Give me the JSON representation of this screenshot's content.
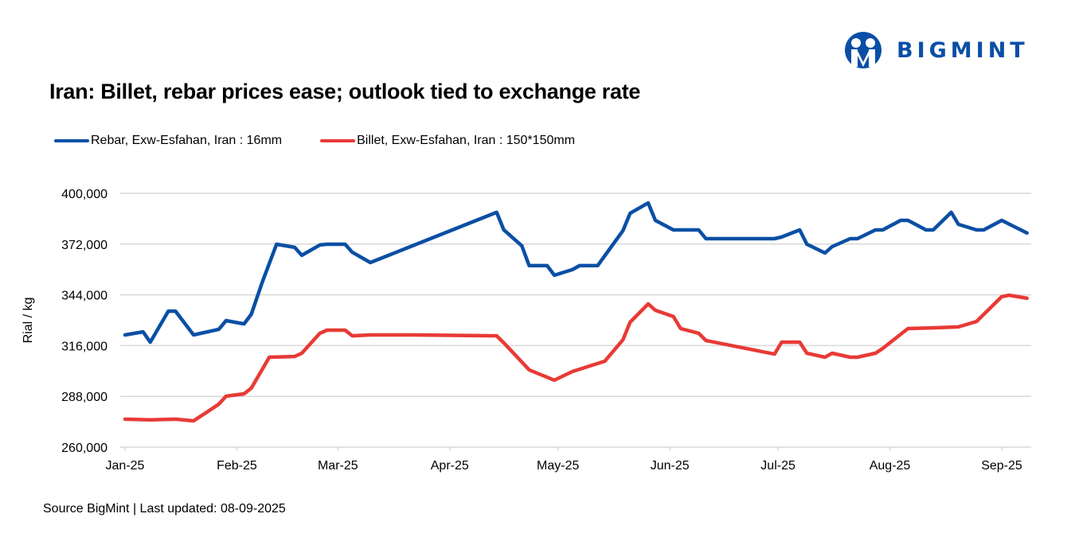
{
  "brand": {
    "name": "BIGMINT",
    "color": "#0a4fa5"
  },
  "title": "Iran: Billet, rebar prices ease; outlook tied to exchange rate",
  "source": "Source BigMint | Last updated: 08-09-2025",
  "chart_data": {
    "type": "line",
    "title": "Iran: Billet, rebar prices ease; outlook tied to exchange rate",
    "xlabel": "",
    "ylabel": "Rial / kg",
    "ylim": [
      260000,
      400000
    ],
    "yticks": [
      260000,
      288000,
      316000,
      344000,
      372000,
      400000
    ],
    "ytick_labels": [
      "260,000",
      "288,000",
      "316,000",
      "344,000",
      "372,000",
      "400,000"
    ],
    "x_unit": "days since 2025-01-01",
    "xlim": [
      0,
      250
    ],
    "xticks": [
      0,
      31,
      59,
      90,
      120,
      151,
      181,
      212,
      243
    ],
    "xtick_labels": [
      "Jan-25",
      "Feb-25",
      "Mar-25",
      "Apr-25",
      "May-25",
      "Jun-25",
      "Jul-25",
      "Aug-25",
      "Sep-25"
    ],
    "grid": true,
    "legend_position": "top-left",
    "series": [
      {
        "name": "Rebar, Exw-Esfahan, Iran : 16mm",
        "color": "#0a4fa5",
        "points": [
          [
            0,
            321900
          ],
          [
            5,
            323600
          ],
          [
            7,
            317900
          ],
          [
            12,
            335000
          ],
          [
            14,
            335000
          ],
          [
            19,
            321900
          ],
          [
            26,
            325000
          ],
          [
            28,
            329800
          ],
          [
            33,
            328000
          ],
          [
            35,
            333300
          ],
          [
            38,
            350800
          ],
          [
            42,
            371900
          ],
          [
            47,
            370200
          ],
          [
            49,
            365800
          ],
          [
            54,
            371500
          ],
          [
            56,
            371900
          ],
          [
            61,
            371900
          ],
          [
            63,
            367500
          ],
          [
            68,
            361800
          ],
          [
            103,
            389500
          ],
          [
            105,
            379800
          ],
          [
            110,
            371000
          ],
          [
            112,
            360100
          ],
          [
            117,
            360100
          ],
          [
            119,
            354800
          ],
          [
            124,
            357900
          ],
          [
            126,
            360100
          ],
          [
            131,
            360100
          ],
          [
            138,
            379400
          ],
          [
            140,
            389000
          ],
          [
            145,
            394700
          ],
          [
            147,
            385100
          ],
          [
            152,
            379800
          ],
          [
            159,
            379800
          ],
          [
            161,
            375000
          ],
          [
            180,
            375000
          ],
          [
            182,
            375900
          ],
          [
            187,
            379800
          ],
          [
            189,
            371900
          ],
          [
            194,
            367100
          ],
          [
            196,
            370600
          ],
          [
            201,
            375000
          ],
          [
            203,
            375000
          ],
          [
            208,
            379800
          ],
          [
            210,
            379800
          ],
          [
            215,
            385100
          ],
          [
            217,
            385100
          ],
          [
            222,
            379800
          ],
          [
            224,
            379800
          ],
          [
            229,
            389500
          ],
          [
            231,
            382900
          ],
          [
            236,
            379800
          ],
          [
            238,
            379800
          ],
          [
            243,
            385100
          ],
          [
            250,
            378100
          ]
        ]
      },
      {
        "name": "Billet, Exw-Esfahan, Iran : 150*150mm",
        "color": "#e83a36",
        "points": [
          [
            0,
            275400
          ],
          [
            7,
            275000
          ],
          [
            14,
            275400
          ],
          [
            19,
            274500
          ],
          [
            22,
            278400
          ],
          [
            26,
            283700
          ],
          [
            28,
            288100
          ],
          [
            33,
            289400
          ],
          [
            35,
            292500
          ],
          [
            40,
            309600
          ],
          [
            47,
            310000
          ],
          [
            49,
            311800
          ],
          [
            54,
            322800
          ],
          [
            56,
            324500
          ],
          [
            61,
            324500
          ],
          [
            63,
            321400
          ],
          [
            68,
            321900
          ],
          [
            80,
            321900
          ],
          [
            103,
            321400
          ],
          [
            105,
            317500
          ],
          [
            111,
            304800
          ],
          [
            112,
            302600
          ],
          [
            119,
            296900
          ],
          [
            124,
            301700
          ],
          [
            133,
            307400
          ],
          [
            138,
            319200
          ],
          [
            140,
            328900
          ],
          [
            145,
            339000
          ],
          [
            147,
            335500
          ],
          [
            152,
            332000
          ],
          [
            154,
            325400
          ],
          [
            159,
            322800
          ],
          [
            161,
            318800
          ],
          [
            180,
            311300
          ],
          [
            182,
            317900
          ],
          [
            187,
            317900
          ],
          [
            189,
            311800
          ],
          [
            194,
            309600
          ],
          [
            196,
            311800
          ],
          [
            201,
            309600
          ],
          [
            203,
            309600
          ],
          [
            208,
            311800
          ],
          [
            210,
            314400
          ],
          [
            217,
            325400
          ],
          [
            224,
            325800
          ],
          [
            231,
            326300
          ],
          [
            236,
            329300
          ],
          [
            243,
            343000
          ],
          [
            245,
            343800
          ],
          [
            250,
            342100
          ]
        ]
      }
    ]
  }
}
